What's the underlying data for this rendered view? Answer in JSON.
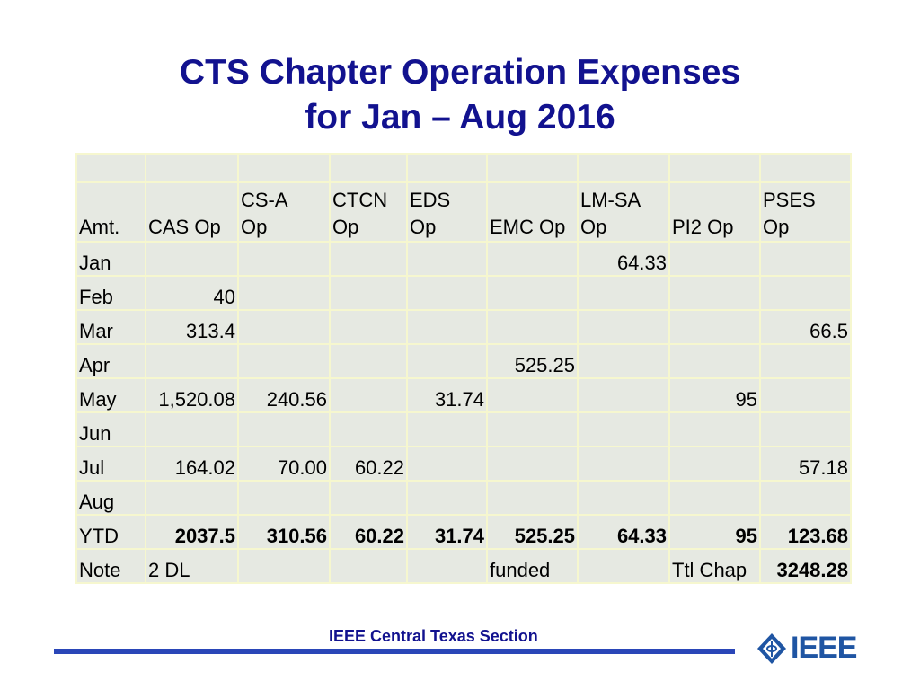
{
  "title": {
    "line1": "CTS Chapter Operation Expenses",
    "line2": "for Jan – Aug 2016"
  },
  "table": {
    "headers": [
      {
        "line1": "",
        "line2": "Amt."
      },
      {
        "line1": "",
        "line2": "CAS Op"
      },
      {
        "line1": "CS-A",
        "line2": "Op"
      },
      {
        "line1": "CTCN",
        "line2": "Op"
      },
      {
        "line1": "EDS",
        "line2": "Op"
      },
      {
        "line1": "",
        "line2": "EMC Op"
      },
      {
        "line1": "LM-SA",
        "line2": "Op"
      },
      {
        "line1": "",
        "line2": "PI2 Op"
      },
      {
        "line1": "PSES",
        "line2": "Op"
      }
    ],
    "rows": [
      {
        "label": "Jan",
        "cells": [
          "",
          "",
          "",
          "",
          "",
          "64.33",
          "",
          ""
        ]
      },
      {
        "label": "Feb",
        "cells": [
          "40",
          "",
          "",
          "",
          "",
          "",
          "",
          ""
        ]
      },
      {
        "label": "Mar",
        "cells": [
          "313.4",
          "",
          "",
          "",
          "",
          "",
          "",
          "66.5"
        ]
      },
      {
        "label": "Apr",
        "cells": [
          "",
          "",
          "",
          "",
          "525.25",
          "",
          "",
          ""
        ]
      },
      {
        "label": "May",
        "cells": [
          "1,520.08",
          "240.56",
          "",
          "31.74",
          "",
          "",
          "95",
          ""
        ]
      },
      {
        "label": "Jun",
        "cells": [
          "",
          "",
          "",
          "",
          "",
          "",
          "",
          ""
        ]
      },
      {
        "label": "Jul",
        "cells": [
          "164.02",
          "70.00",
          "60.22",
          "",
          "",
          "",
          "",
          "57.18"
        ]
      },
      {
        "label": "Aug",
        "cells": [
          "",
          "",
          "",
          "",
          "",
          "",
          "",
          ""
        ]
      }
    ],
    "ytd": {
      "label": "YTD",
      "cells": [
        "2037.5",
        "310.56",
        "60.22",
        "31.74",
        "525.25",
        "64.33",
        "95",
        "123.68"
      ]
    },
    "note": {
      "label": "Note",
      "cells": [
        "2 DL",
        "",
        "",
        "",
        "funded",
        "",
        "Ttl Chap",
        "3248.28"
      ]
    }
  },
  "footer": {
    "text": "IEEE Central Texas Section",
    "logo_text": "IEEE",
    "bar_color": "#2a46b8",
    "title_color": "#12128f"
  }
}
